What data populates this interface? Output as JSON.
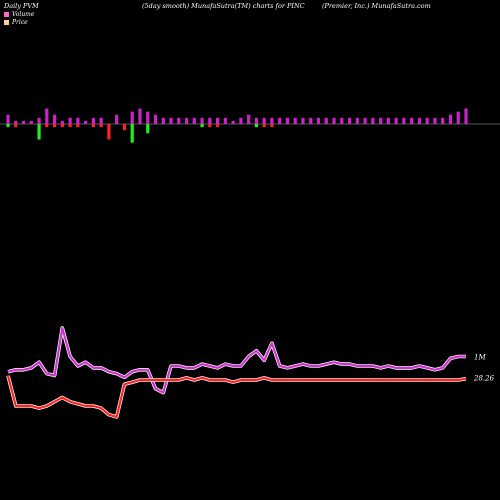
{
  "header": {
    "left": "Daily PVM",
    "center": "(5day smooth) MunafaSutra(TM) charts for PINC",
    "right": "(Premier, Inc.) MunafaSutra.com"
  },
  "legend": [
    {
      "label": "Volume",
      "color": "#ff66cc"
    },
    {
      "label": "Price",
      "color": "#ffcc99"
    }
  ],
  "colors": {
    "volume_line": "#cc33cc",
    "volume_line_glow": "#ffffff",
    "price_line": "#ff2222",
    "price_line_glow": "#ffffff",
    "bar_up": "#cc22cc",
    "bar_down": "#ff2222",
    "bar_green": "#22ee22",
    "baseline": "#aaaaaa"
  },
  "chart_data": {
    "type": "bar+line",
    "series": [
      {
        "name": "Volume",
        "type": "line",
        "label": "1M",
        "values": [
          27,
          28,
          28,
          29,
          32,
          26,
          25,
          50,
          35,
          30,
          32,
          29,
          29,
          27,
          26,
          24,
          27,
          28,
          28,
          18,
          16,
          30,
          30,
          29,
          29,
          31,
          30,
          29,
          31,
          30,
          30,
          35,
          38,
          33,
          42,
          30,
          29,
          30,
          31,
          30,
          30,
          31,
          32,
          31,
          31,
          30,
          30,
          30,
          29,
          30,
          29,
          29,
          29,
          30,
          29,
          28,
          29,
          34,
          35,
          35
        ]
      },
      {
        "name": "Price",
        "type": "line",
        "label": "28.26",
        "values": [
          28.4,
          27.0,
          27.0,
          27.0,
          26.9,
          27.0,
          27.2,
          27.4,
          27.2,
          27.1,
          27.0,
          27.0,
          26.9,
          26.6,
          26.5,
          28.0,
          28.1,
          28.2,
          28.2,
          28.2,
          28.2,
          28.2,
          28.2,
          28.3,
          28.2,
          28.3,
          28.2,
          28.2,
          28.2,
          28.1,
          28.2,
          28.2,
          28.2,
          28.3,
          28.2,
          28.2,
          28.2,
          28.2,
          28.2,
          28.2,
          28.2,
          28.2,
          28.2,
          28.2,
          28.2,
          28.2,
          28.2,
          28.2,
          28.2,
          28.2,
          28.2,
          28.2,
          28.2,
          28.2,
          28.2,
          28.2,
          28.2,
          28.2,
          28.2,
          28.26
        ]
      }
    ],
    "bars": {
      "up": [
        3,
        1,
        1,
        1,
        2,
        5,
        3,
        1,
        2,
        2,
        1,
        2,
        2,
        0,
        3,
        0,
        4,
        5,
        4,
        3,
        2,
        2,
        2,
        2,
        2,
        2,
        2,
        2,
        2,
        1,
        2,
        3,
        2,
        2,
        2,
        2,
        2,
        2,
        2,
        2,
        2,
        2,
        2,
        2,
        2,
        2,
        2,
        2,
        2,
        2,
        2,
        2,
        2,
        2,
        2,
        2,
        2,
        3,
        4,
        5
      ],
      "down": [
        1,
        1,
        0,
        0,
        5,
        1,
        1,
        1,
        1,
        1,
        0,
        1,
        1,
        5,
        0,
        2,
        6,
        0,
        3,
        0,
        0,
        0,
        0,
        0,
        0,
        1,
        1,
        1,
        0,
        0,
        0,
        0,
        1,
        1,
        1,
        0,
        0,
        0,
        0,
        0,
        0,
        0,
        0,
        0,
        0,
        0,
        0,
        0,
        0,
        0,
        0,
        0,
        0,
        0,
        0,
        0,
        0,
        0,
        0,
        0
      ],
      "down_color": [
        "g",
        "r",
        "r",
        "r",
        "g",
        "r",
        "r",
        "r",
        "r",
        "r",
        "r",
        "r",
        "r",
        "r",
        "r",
        "r",
        "g",
        "r",
        "g",
        "r",
        "r",
        "r",
        "r",
        "r",
        "r",
        "g",
        "r",
        "r",
        "r",
        "r",
        "r",
        "r",
        "g",
        "r",
        "r",
        "r",
        "r",
        "r",
        "r",
        "r",
        "r",
        "r",
        "r",
        "r",
        "r",
        "r",
        "r",
        "r",
        "r",
        "r",
        "r",
        "r",
        "r",
        "r",
        "r",
        "r",
        "r",
        "r",
        "r",
        "r"
      ]
    }
  }
}
